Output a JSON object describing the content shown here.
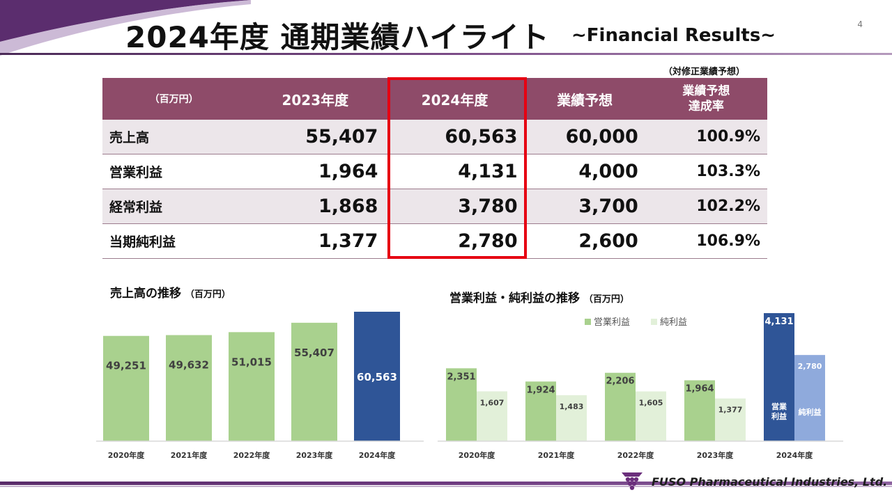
{
  "header": {
    "title": "2024年度 通期業績ハイライト",
    "subtitle": "~Financial Results~",
    "page_number": "4"
  },
  "table": {
    "note": "（対修正業績予想）",
    "columns": [
      "（百万円）",
      "2023年度",
      "2024年度",
      "業績予想",
      "業績予想\n達成率"
    ],
    "rows": [
      {
        "label": "売上高",
        "y2023": "55,407",
        "y2024": "60,563",
        "forecast": "60,000",
        "rate": "100.9%"
      },
      {
        "label": "営業利益",
        "y2023": "1,964",
        "y2024": "4,131",
        "forecast": "4,000",
        "rate": "103.3%"
      },
      {
        "label": "経常利益",
        "y2023": "1,868",
        "y2024": "3,780",
        "forecast": "3,700",
        "rate": "102.2%"
      },
      {
        "label": "当期純利益",
        "y2023": "1,377",
        "y2024": "2,780",
        "forecast": "2,600",
        "rate": "106.9%"
      }
    ]
  },
  "chart_data": [
    {
      "type": "bar",
      "title": "売上高の推移",
      "unit": "（百万円）",
      "categories": [
        "2020年度",
        "2021年度",
        "2022年度",
        "2023年度",
        "2024年度"
      ],
      "series": [
        {
          "values": [
            49251,
            49632,
            51015,
            55407,
            60563
          ]
        }
      ],
      "value_labels": [
        "49,251",
        "49,632",
        "51,015",
        "55,407",
        "60,563"
      ],
      "colors": [
        "#a9d18e",
        "#a9d18e",
        "#a9d18e",
        "#a9d18e",
        "#2f5597"
      ],
      "grid": false
    },
    {
      "type": "bar",
      "title": "営業利益・純利益の推移",
      "unit": "（百万円）",
      "categories": [
        "2020年度",
        "2021年度",
        "2022年度",
        "2023年度",
        "2024年度"
      ],
      "series": [
        {
          "name": "営業利益",
          "values": [
            2351,
            1924,
            2206,
            1964,
            4131
          ],
          "labels": [
            "2,351",
            "1,924",
            "2,206",
            "1,964",
            "4,131"
          ]
        },
        {
          "name": "純利益",
          "values": [
            1607,
            1483,
            1605,
            1377,
            2780
          ],
          "labels": [
            "1,607",
            "1,483",
            "1,605",
            "1,377",
            "2,780"
          ]
        }
      ],
      "inbar_labels": [
        "営業\n利益",
        "純利益"
      ],
      "colors": {
        "op": "#a9d18e",
        "net": "#e2f0d9",
        "op_2024": "#2f5597",
        "net_2024": "#8faadc"
      },
      "legend": "top",
      "grid": false
    }
  ],
  "footer": {
    "company": "FUSO Pharmaceutical Industries, Ltd."
  }
}
